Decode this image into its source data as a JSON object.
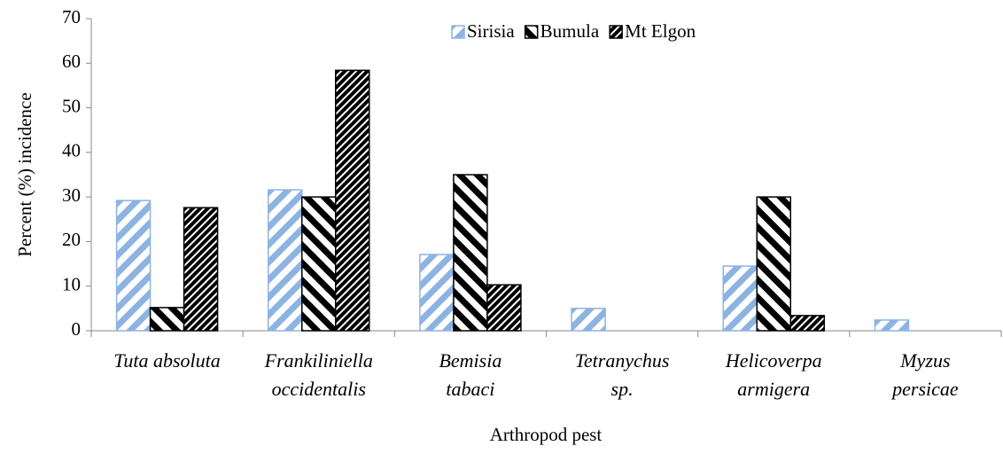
{
  "chart_data": {
    "type": "bar",
    "y_label": "Percent (%) incidence",
    "x_label": "Arthropod pest",
    "categories": [
      [
        "Tuta absoluta"
      ],
      [
        "Frankiliniella",
        "occidentalis"
      ],
      [
        "Bemisia",
        "tabaci"
      ],
      [
        "Tetranychus",
        "sp."
      ],
      [
        "Helicoverpa",
        "armigera"
      ],
      [
        "Myzus",
        "persicae"
      ]
    ],
    "series": [
      {
        "name": "Sirisia",
        "color": "#8db3e2",
        "values": [
          29.2,
          31.6,
          17.1,
          5,
          14.5,
          2.4
        ]
      },
      {
        "name": "Bumula",
        "color": "#000000",
        "values": [
          5.2,
          30,
          35,
          0,
          30,
          0
        ]
      },
      {
        "name": "Mt Elgon",
        "color": "#000000",
        "values": [
          27.6,
          58.4,
          10.3,
          0,
          3.4,
          0
        ]
      }
    ],
    "ylim": [
      0,
      70
    ],
    "yticks": [
      0,
      10,
      20,
      30,
      40,
      50,
      60,
      70
    ],
    "legend": "top"
  }
}
